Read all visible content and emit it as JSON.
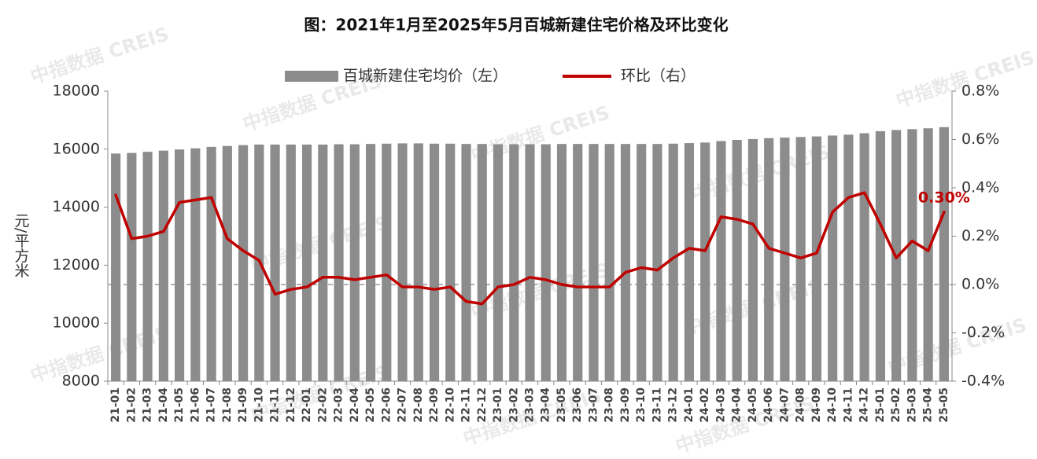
{
  "chart_data": {
    "type": "bar_line",
    "title": "图：2021年1月至2025年5月百城新建住宅价格及环比变化",
    "y_label": "元/平方米",
    "watermark": "中指数据 CREIS",
    "categories": [
      "21-01",
      "21-02",
      "21-03",
      "21-04",
      "21-05",
      "21-06",
      "21-07",
      "21-08",
      "21-09",
      "21-10",
      "21-11",
      "21-12",
      "22-01",
      "22-02",
      "22-03",
      "22-04",
      "22-05",
      "22-06",
      "22-07",
      "22-08",
      "22-09",
      "22-10",
      "22-11",
      "22-12",
      "23-01",
      "23-02",
      "23-03",
      "23-04",
      "23-05",
      "23-06",
      "23-07",
      "23-08",
      "23-09",
      "23-10",
      "23-11",
      "23-12",
      "24-01",
      "24-02",
      "24-03",
      "24-04",
      "24-05",
      "24-06",
      "24-07",
      "24-08",
      "24-09",
      "24-10",
      "24-11",
      "24-12",
      "25-01",
      "25-02",
      "25-03",
      "25-04",
      "25-05"
    ],
    "series": [
      {
        "name": "百城新建住宅均价（左）",
        "type": "bar",
        "color": "#8c8c8c",
        "values": [
          15850,
          15870,
          15910,
          15950,
          15990,
          16030,
          16080,
          16110,
          16140,
          16160,
          16160,
          16160,
          16160,
          16160,
          16170,
          16170,
          16180,
          16190,
          16200,
          16200,
          16190,
          16190,
          16180,
          16180,
          16170,
          16170,
          16170,
          16170,
          16180,
          16180,
          16180,
          16180,
          16180,
          16180,
          16180,
          16190,
          16210,
          16230,
          16280,
          16320,
          16350,
          16380,
          16400,
          16420,
          16440,
          16470,
          16500,
          16550,
          16620,
          16660,
          16690,
          16720,
          16760
        ]
      },
      {
        "name": "环比（右）",
        "type": "line",
        "axis": "y2",
        "color": "#c00000",
        "values": [
          0.37,
          0.19,
          0.2,
          0.22,
          0.34,
          0.35,
          0.36,
          0.19,
          0.14,
          0.1,
          -0.04,
          -0.02,
          -0.01,
          0.03,
          0.03,
          0.02,
          0.03,
          0.04,
          -0.01,
          -0.01,
          -0.02,
          -0.01,
          -0.07,
          -0.08,
          -0.01,
          0.0,
          0.03,
          0.02,
          0.0,
          -0.01,
          -0.01,
          -0.01,
          0.05,
          0.07,
          0.06,
          0.11,
          0.15,
          0.14,
          0.28,
          0.27,
          0.25,
          0.15,
          0.13,
          0.11,
          0.13,
          0.3,
          0.36,
          0.38,
          0.25,
          0.11,
          0.18,
          0.14,
          0.3
        ],
        "value_labels": [
          null,
          null,
          null,
          null,
          null,
          null,
          null,
          null,
          null,
          null,
          null,
          null,
          null,
          null,
          null,
          null,
          null,
          null,
          null,
          null,
          null,
          null,
          null,
          null,
          null,
          null,
          null,
          null,
          null,
          null,
          null,
          null,
          null,
          null,
          null,
          null,
          null,
          null,
          null,
          null,
          null,
          null,
          null,
          null,
          null,
          null,
          null,
          null,
          null,
          null,
          null,
          null,
          "0.30%"
        ]
      }
    ],
    "ylim": [
      8000,
      18000
    ],
    "yticks": [
      8000,
      10000,
      12000,
      14000,
      16000,
      18000
    ],
    "y2lim": [
      -0.4,
      0.8
    ],
    "y2ticks": [
      {
        "value": -0.4,
        "label": "-0.4%"
      },
      {
        "value": -0.2,
        "label": "-0.2%"
      },
      {
        "value": 0,
        "label": "0.0%"
      },
      {
        "value": 0.2,
        "label": "0.2%"
      },
      {
        "value": 0.4,
        "label": "0.4%"
      },
      {
        "value": 0.6,
        "label": "0.6%"
      },
      {
        "value": 0.8,
        "label": "0.8%"
      }
    ],
    "y2_zero_line": true,
    "legend": "top"
  }
}
